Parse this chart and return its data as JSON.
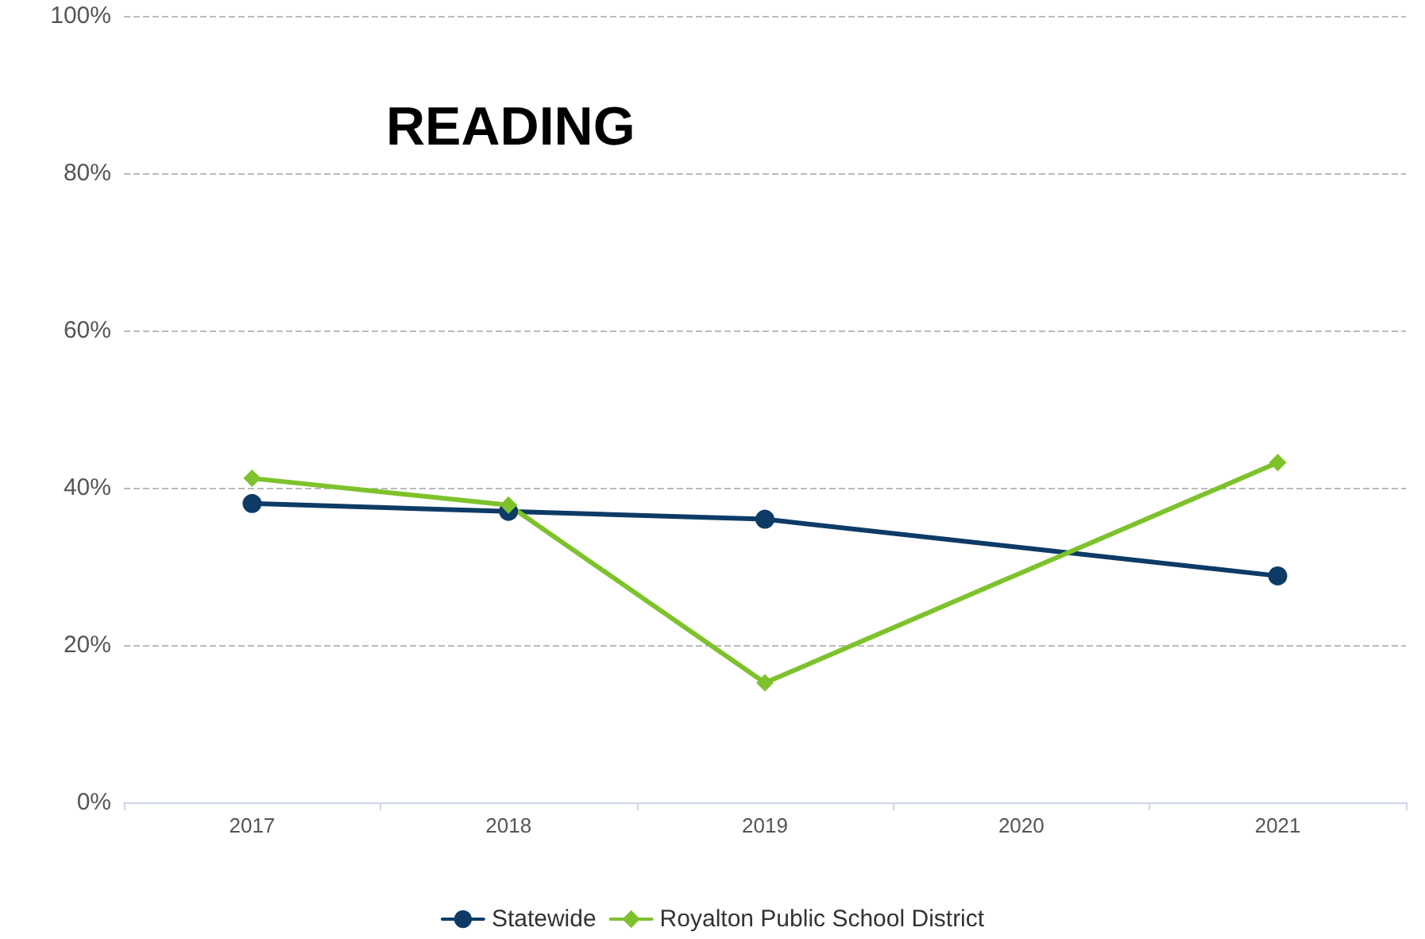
{
  "chart_data": {
    "type": "line",
    "title": "READING",
    "categories": [
      "2017",
      "2018",
      "2019",
      "2020",
      "2021"
    ],
    "series": [
      {
        "name": "Statewide",
        "color": "#0d3b66",
        "marker": "circle",
        "values": [
          38,
          37,
          36,
          null,
          28.8
        ]
      },
      {
        "name": "Royalton Public School District",
        "color": "#7dc22b",
        "marker": "diamond",
        "values": [
          41.2,
          37.8,
          15.2,
          null,
          43.2
        ]
      }
    ],
    "ylim": [
      0,
      100
    ],
    "yticks": [
      {
        "value": 0,
        "label": "0%"
      },
      {
        "value": 20,
        "label": "20%"
      },
      {
        "value": 40,
        "label": "40%"
      },
      {
        "value": 60,
        "label": "60%"
      },
      {
        "value": 80,
        "label": "80%"
      },
      {
        "value": 100,
        "label": "100%"
      }
    ],
    "grid": "y",
    "legend": "bottom"
  }
}
